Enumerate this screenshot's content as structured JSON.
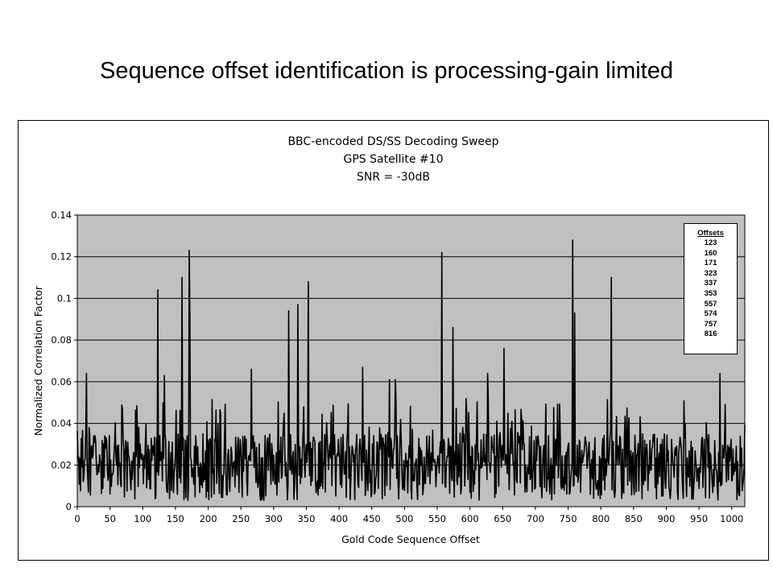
{
  "slide": {
    "title": "Sequence offset identification is processing-gain limited"
  },
  "chart_data": {
    "type": "line",
    "title_lines": [
      "BBC-encoded DS/SS Decoding Sweep",
      "GPS Satellite #10",
      "SNR = -30dB"
    ],
    "xlabel": "Gold Code Sequence Offset",
    "ylabel": "Normalized Correlation Factor",
    "xlim": [
      0,
      1020
    ],
    "ylim": [
      0,
      0.14
    ],
    "x_ticks": [
      0,
      50,
      100,
      150,
      200,
      250,
      300,
      350,
      400,
      450,
      500,
      550,
      600,
      650,
      700,
      750,
      800,
      850,
      900,
      950,
      1000
    ],
    "y_ticks": [
      0,
      0.02,
      0.04,
      0.06,
      0.08,
      0.1,
      0.12,
      0.14
    ],
    "y_tick_labels": [
      "0",
      "0.02",
      "0.04",
      "0.06",
      "0.08",
      "0.1",
      "0.12",
      "0.14"
    ],
    "grid": "horizontal",
    "plot_background": "#c0c0c0",
    "line_color": "#000000",
    "legend": {
      "title": "Offsets",
      "placement": "top-right",
      "items": [
        "123",
        "160",
        "171",
        "323",
        "337",
        "353",
        "557",
        "574",
        "757",
        "816"
      ]
    },
    "series": [
      {
        "peaks": [
          {
            "x": 123,
            "y": 0.104
          },
          {
            "x": 160,
            "y": 0.11
          },
          {
            "x": 171,
            "y": 0.123
          },
          {
            "x": 323,
            "y": 0.094
          },
          {
            "x": 337,
            "y": 0.097
          },
          {
            "x": 353,
            "y": 0.108
          },
          {
            "x": 557,
            "y": 0.122
          },
          {
            "x": 574,
            "y": 0.086
          },
          {
            "x": 757,
            "y": 0.128
          },
          {
            "x": 816,
            "y": 0.11
          }
        ],
        "secondary_spikes": [
          {
            "x": 14,
            "y": 0.064
          },
          {
            "x": 172,
            "y": 0.093
          },
          {
            "x": 133,
            "y": 0.063
          },
          {
            "x": 266,
            "y": 0.066
          },
          {
            "x": 436,
            "y": 0.067
          },
          {
            "x": 477,
            "y": 0.061
          },
          {
            "x": 486,
            "y": 0.061
          },
          {
            "x": 627,
            "y": 0.064
          },
          {
            "x": 652,
            "y": 0.076
          },
          {
            "x": 760,
            "y": 0.093
          },
          {
            "x": 982,
            "y": 0.064
          }
        ],
        "noise_floor": {
          "min": 0.0,
          "typical_max": 0.05,
          "samples": 1021
        }
      }
    ]
  }
}
